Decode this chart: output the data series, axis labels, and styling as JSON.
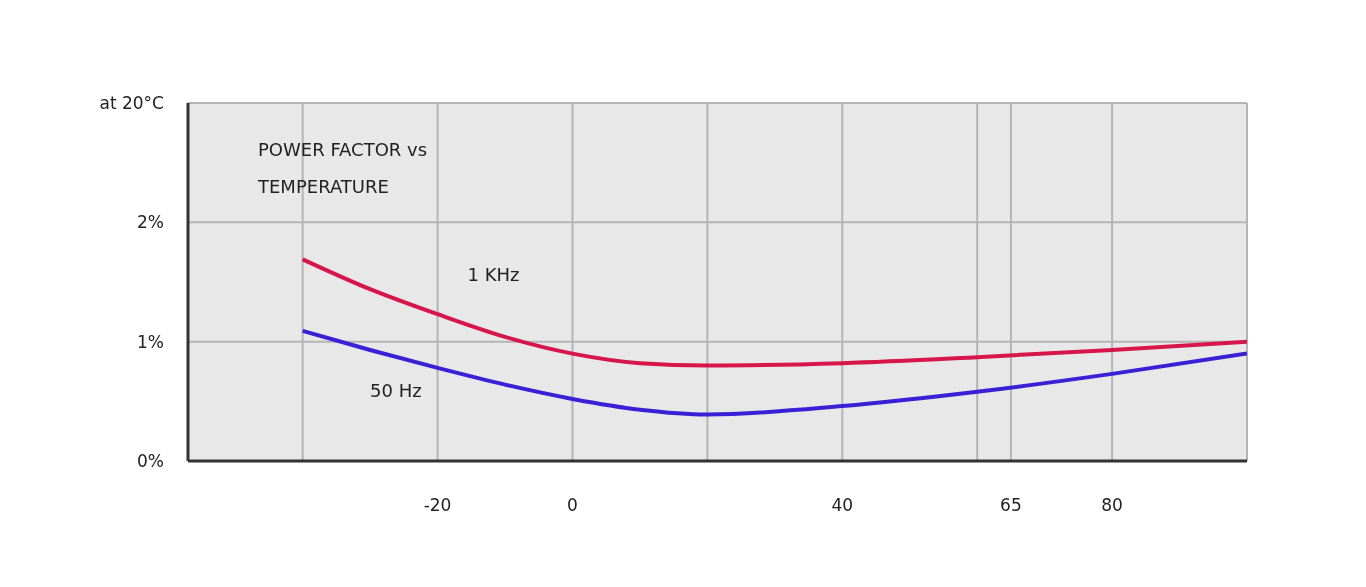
{
  "chart_data": {
    "type": "line",
    "title": "POWER FACTOR vs TEMPERATURE",
    "x": [
      -40,
      -30,
      -20,
      -10,
      0,
      10,
      20,
      40,
      60,
      80,
      100
    ],
    "series": [
      {
        "name": "1 KHz",
        "color": "#d6164a",
        "values": [
          1.69,
          1.44,
          1.23,
          1.04,
          0.9,
          0.82,
          0.8,
          0.82,
          0.87,
          0.93,
          1.0
        ]
      },
      {
        "name": "50 Hz",
        "color": "#3b1fd6",
        "values": [
          1.09,
          0.93,
          0.78,
          0.64,
          0.52,
          0.43,
          0.39,
          0.46,
          0.58,
          0.73,
          0.9
        ]
      }
    ],
    "xlim": [
      -57,
      100
    ],
    "xticks": [
      {
        "value": -40,
        "label": null
      },
      -20,
      0,
      {
        "value": 20,
        "label": null
      },
      40,
      {
        "value": 60,
        "label": null
      },
      65,
      80,
      {
        "value": 100,
        "label": null
      }
    ],
    "ylim": [
      0,
      3
    ],
    "yticks": [
      {
        "value": 0,
        "label": "0%"
      },
      {
        "value": 1,
        "label": "1%"
      },
      {
        "value": 2,
        "label": "2%"
      },
      {
        "value": 3,
        "label": "at 20°C"
      }
    ],
    "grid": true,
    "marker": "none",
    "line_style": "solid"
  }
}
